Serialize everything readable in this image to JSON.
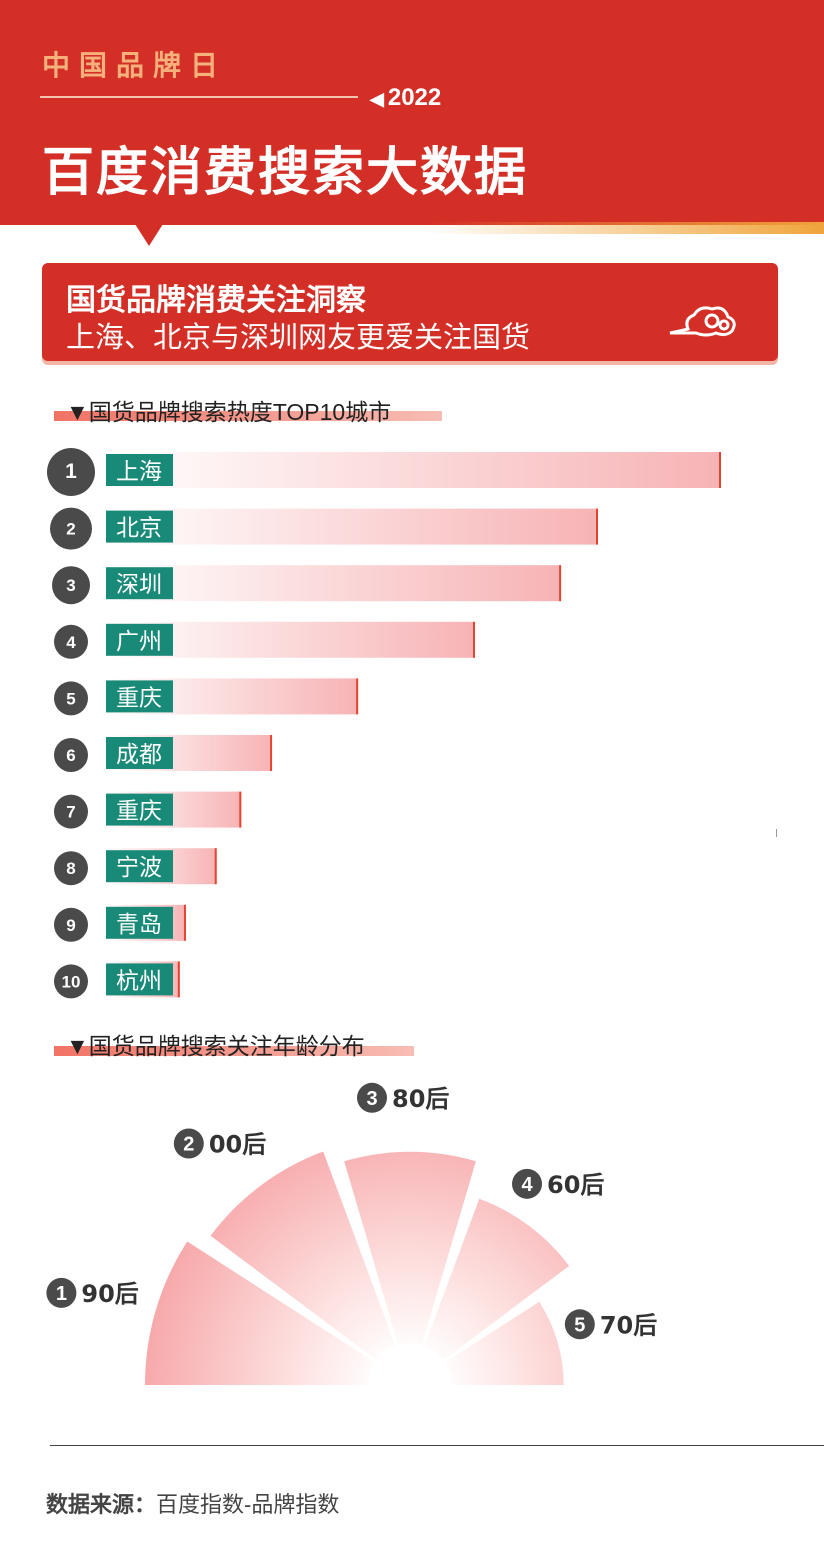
{
  "header": {
    "brand": "中国品牌日",
    "year": "2022",
    "title": "百度消费搜索大数据"
  },
  "banner": {
    "title": "国货品牌消费关注洞察",
    "subtitle": "上海、北京与深圳网友更爱关注国货"
  },
  "sections": {
    "city_title": "国货品牌搜索热度TOP10城市",
    "age_title": "国货品牌搜索关注年龄分布"
  },
  "footer": {
    "label": "数据来源：",
    "source": "百度指数-品牌指数"
  },
  "colors": {
    "brand_red": "#d42f27",
    "label_green": "#1a8a78",
    "rank_dark": "#4a4a4a"
  },
  "chart_data": [
    {
      "type": "bar",
      "orientation": "horizontal",
      "title": "国货品牌搜索热度TOP10城市",
      "ranks": [
        "1",
        "2",
        "3",
        "4",
        "5",
        "6",
        "7",
        "8",
        "9",
        "10"
      ],
      "categories": [
        "上海",
        "北京",
        "深圳",
        "广州",
        "重庆",
        "成都",
        "重庆",
        "宁波",
        "青岛",
        "杭州"
      ],
      "values": [
        100,
        80,
        74,
        60,
        41,
        27,
        22,
        18,
        13,
        12
      ]
    },
    {
      "type": "pie",
      "subtype": "radial-semicircle",
      "title": "国货品牌搜索关注年龄分布",
      "categories": [
        "90后",
        "00后",
        "80后",
        "60后",
        "70后"
      ],
      "ranks": [
        "1",
        "2",
        "3",
        "4",
        "5"
      ],
      "values": [
        100,
        94,
        88,
        75,
        58
      ]
    }
  ]
}
